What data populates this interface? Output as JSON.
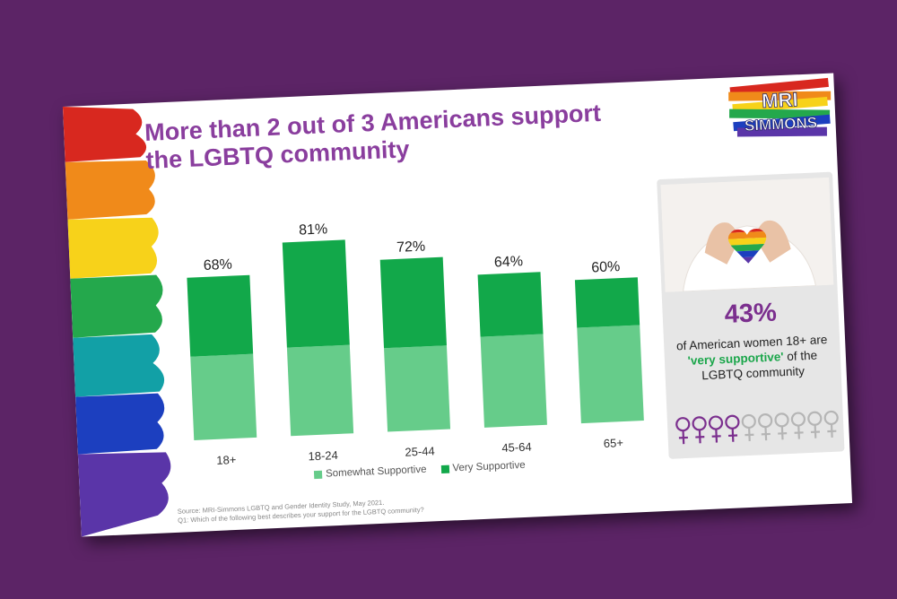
{
  "slide": {
    "title": "More than 2 out of 3 Americans support the LGBTQ community",
    "logo": {
      "line1": "MRI",
      "line2": "SIMMONS"
    },
    "source_line1": "Source: MRI-Simmons LGBTQ and Gender Identity Study, May 2021.",
    "source_line2": "Q1: Which of the following best describes your support for the LGBTQ community?"
  },
  "chart_data": {
    "type": "bar",
    "stacked": true,
    "categories": [
      "18+",
      "18-24",
      "25-44",
      "45-64",
      "65+"
    ],
    "totals": [
      "68%",
      "81%",
      "72%",
      "64%",
      "60%"
    ],
    "series": [
      {
        "name": "Somewhat Supportive",
        "color": "#66cc8a",
        "values": [
          35,
          37,
          35,
          38,
          40
        ]
      },
      {
        "name": "Very Supportive",
        "color": "#12a84a",
        "values": [
          33,
          44,
          37,
          26,
          20
        ]
      }
    ],
    "ylim": [
      0,
      90
    ],
    "grid": false,
    "legend_position": "bottom"
  },
  "panel": {
    "stat": "43%",
    "text_before": "of American women 18+ are",
    "highlight": "'very supportive'",
    "text_after": "of the LGBTQ community",
    "icon": "venus-icon",
    "icons_total": 10,
    "icons_filled": 4,
    "filled_color": "#7b2f8e",
    "empty_color": "#b5b5b5",
    "accent_color": "#1aa64a"
  }
}
